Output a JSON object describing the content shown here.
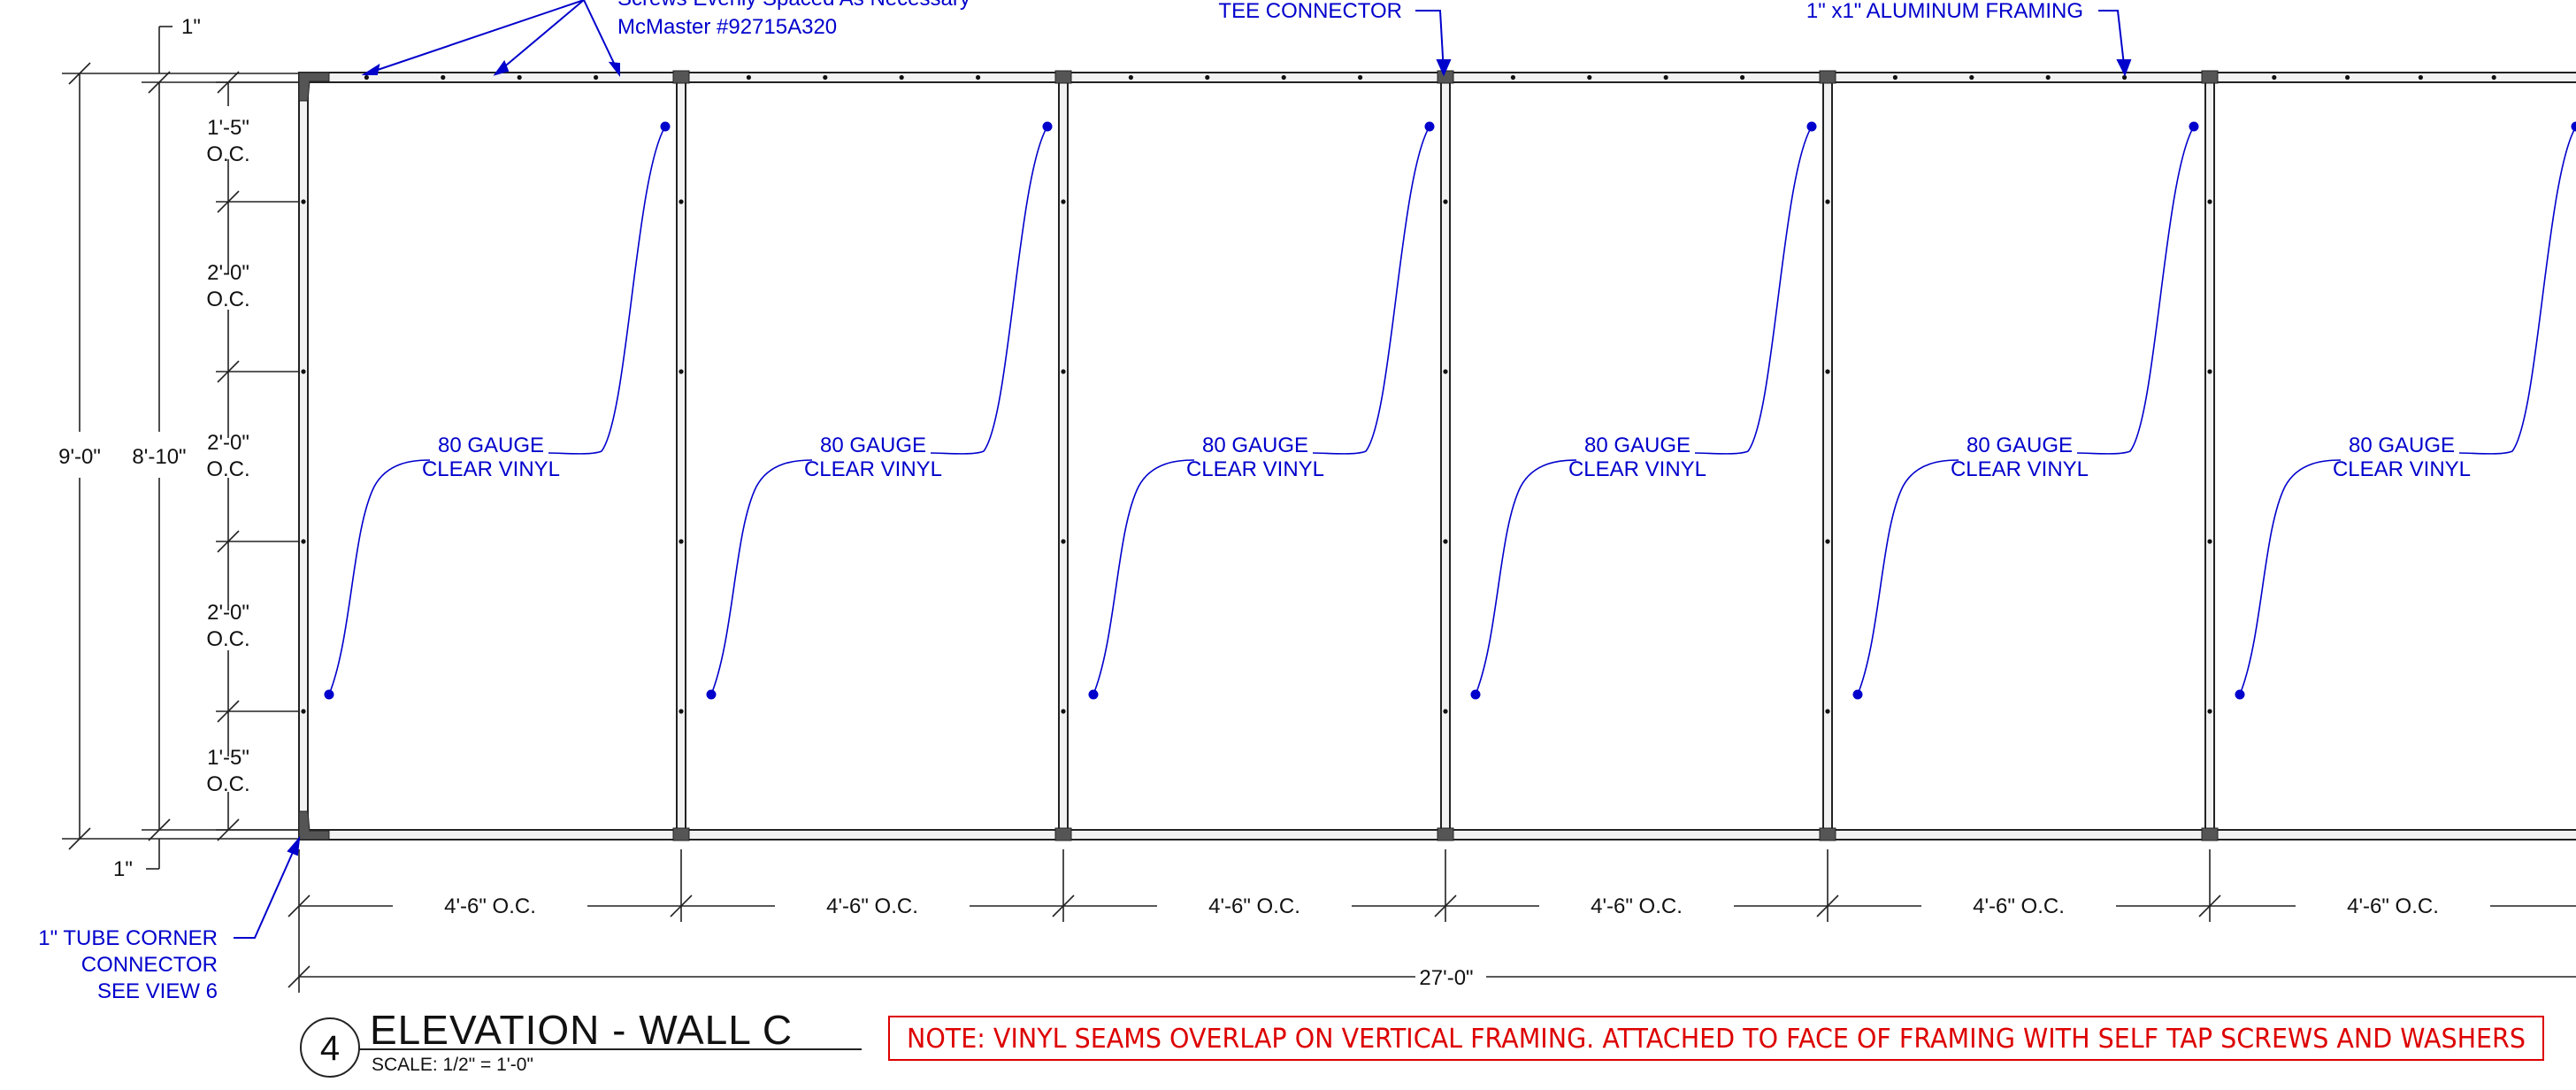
{
  "callouts": {
    "screws_line1": "Screws Evenly Spaced As Necessary",
    "screws_line2": "McMaster #92715A320",
    "tee_connector": "TEE CONNECTOR",
    "aluminum_framing": "1\" x1\" ALUMINUM FRAMING",
    "vinyl_line1": "80 GAUGE",
    "vinyl_line2": "CLEAR VINYL",
    "corner_line1": "1\" TUBE CORNER",
    "corner_line2": "CONNECTOR",
    "corner_line3": "SEE VIEW 6"
  },
  "dimensions": {
    "top_offset": "1\"",
    "bottom_offset": "1\"",
    "overall_height": "9'-0\"",
    "inner_height": "8'-10\"",
    "vertical_spacings": [
      [
        "1'-5\"",
        "O.C."
      ],
      [
        "2'-0\"",
        "O.C."
      ],
      [
        "2'-0\"",
        "O.C."
      ],
      [
        "2'-0\"",
        "O.C."
      ],
      [
        "1'-5\"",
        "O.C."
      ]
    ],
    "panel_spacing": "4'-6\" O.C.",
    "overall_width": "27'-0\""
  },
  "title_block": {
    "view_number": "4",
    "title": "ELEVATION - WALL C",
    "scale": "SCALE: 1/2\" = 1'-0\""
  },
  "note": "NOTE: VINYL SEAMS OVERLAP ON VERTICAL FRAMING. ATTACHED TO FACE OF FRAMING WITH SELF TAP SCREWS AND WASHERS",
  "colors": {
    "callout": "#0000cc",
    "note": "#dd0000",
    "linework": "#111111"
  }
}
